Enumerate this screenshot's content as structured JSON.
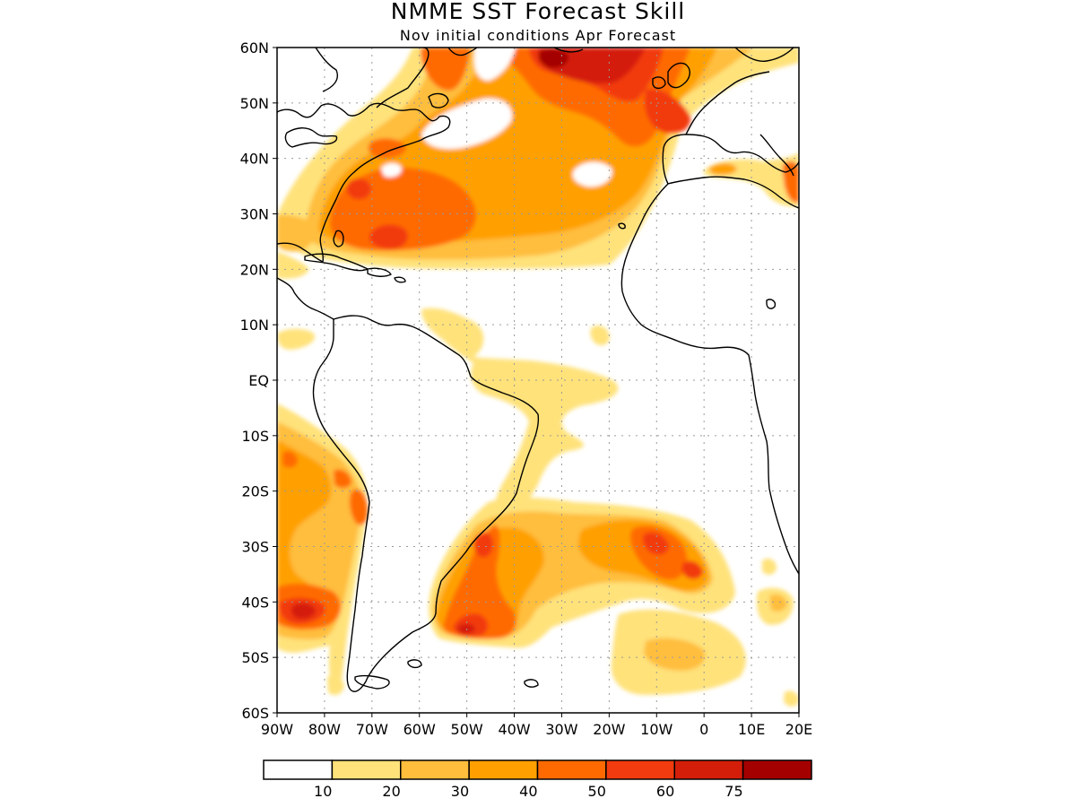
{
  "title": "NMME SST Forecast Skill",
  "subtitle": "Nov initial conditions  Apr Forecast",
  "lat_labels": [
    "60N",
    "50N",
    "40N",
    "30N",
    "20N",
    "10N",
    "EQ",
    "10S",
    "20S",
    "30S",
    "40S",
    "50S",
    "60S"
  ],
  "lon_labels": [
    "90W",
    "80W",
    "70W",
    "60W",
    "50W",
    "40W",
    "30W",
    "20W",
    "10W",
    "0",
    "10E",
    "20E"
  ],
  "colorbar": {
    "labels": [
      "10",
      "20",
      "30",
      "40",
      "50",
      "60",
      "75"
    ],
    "colors": [
      "#ffffff",
      "#ffe27a",
      "#ffbe3c",
      "#ffa000",
      "#ff6a00",
      "#f23b0e",
      "#d41e0a",
      "#a40000"
    ]
  },
  "map_extent": {
    "lon": [
      -90,
      20
    ],
    "lat": [
      -60,
      60
    ]
  },
  "skill_regions": [
    {
      "lon": -33,
      "lat": 56,
      "level": 7
    },
    {
      "lon": -25,
      "lat": 55,
      "level": 6
    },
    {
      "lon": -52,
      "lat": 56,
      "level": 5
    },
    {
      "lon": -14,
      "lat": 47,
      "level": 5
    },
    {
      "lon": -68,
      "lat": 35,
      "level": 5
    },
    {
      "lon": -57,
      "lat": 27,
      "level": 5
    },
    {
      "lon": -48,
      "lat": 30,
      "level": 4
    },
    {
      "lon": -37,
      "lat": 44,
      "level": 4
    },
    {
      "lon": -20,
      "lat": 28,
      "level": 3
    },
    {
      "lon": -86,
      "lat": -42,
      "level": 6
    },
    {
      "lon": -75,
      "lat": -22,
      "level": 4
    },
    {
      "lon": -48,
      "lat": -45,
      "level": 6
    },
    {
      "lon": -47,
      "lat": -32,
      "level": 5
    },
    {
      "lon": -13,
      "lat": -29,
      "level": 4
    },
    {
      "lon": -6,
      "lat": -34,
      "level": 4
    },
    {
      "lon": -35,
      "lat": -5,
      "level": 1
    },
    {
      "lon": -12,
      "lat": -47,
      "level": 1
    },
    {
      "lon": 15,
      "lat": 38,
      "level": 4
    }
  ]
}
